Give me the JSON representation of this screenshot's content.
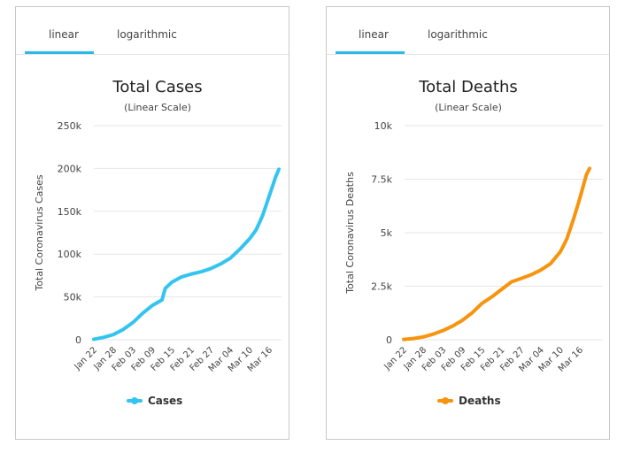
{
  "panels": [
    {
      "tabs": {
        "active": "linear",
        "inactive": "logarithmic"
      },
      "chart_data": {
        "type": "line",
        "title": "Total Cases",
        "subtitle": "(Linear Scale)",
        "ylabel": "Total Coronavirus Cases",
        "xlabel": "",
        "ylim": [
          0,
          250000
        ],
        "yticks": [
          0,
          50000,
          100000,
          150000,
          200000,
          250000
        ],
        "ytick_labels": [
          "0",
          "50k",
          "100k",
          "150k",
          "200k",
          "250k"
        ],
        "x_tick_labels": [
          "Jan 22",
          "Jan 28",
          "Feb 03",
          "Feb 09",
          "Feb 15",
          "Feb 21",
          "Feb 27",
          "Mar 04",
          "Mar 10",
          "Mar 16"
        ],
        "legend_position": "bottom",
        "grid": true,
        "series": [
          {
            "name": "Cases",
            "color": "#33c4ef",
            "x": [
              "Jan 22",
              "Jan 25",
              "Jan 28",
              "Jan 31",
              "Feb 03",
              "Feb 06",
              "Feb 09",
              "Feb 12",
              "Feb 13",
              "Feb 15",
              "Feb 18",
              "Feb 21",
              "Feb 24",
              "Feb 27",
              "Mar 01",
              "Mar 04",
              "Mar 07",
              "Mar 10",
              "Mar 12",
              "Mar 14",
              "Mar 16",
              "Mar 18",
              "Mar 19"
            ],
            "values": [
              580,
              2800,
              6000,
              11900,
              20000,
              30800,
              40000,
              46500,
              60000,
              67100,
              73300,
              76700,
              79300,
              83100,
              88400,
              95100,
              105800,
              118000,
              128300,
              145100,
              167500,
              190000,
              199000
            ]
          }
        ]
      }
    },
    {
      "tabs": {
        "active": "linear",
        "inactive": "logarithmic"
      },
      "chart_data": {
        "type": "line",
        "title": "Total Deaths",
        "subtitle": "(Linear Scale)",
        "ylabel": "Total Coronavirus Deaths",
        "xlabel": "",
        "ylim": [
          0,
          10000
        ],
        "yticks": [
          0,
          2500,
          5000,
          7500,
          10000
        ],
        "ytick_labels": [
          "0",
          "2.5k",
          "5k",
          "7.5k",
          "10k"
        ],
        "x_tick_labels": [
          "Jan 22",
          "Jan 28",
          "Feb 03",
          "Feb 09",
          "Feb 15",
          "Feb 21",
          "Feb 27",
          "Mar 04",
          "Mar 10",
          "Mar 16"
        ],
        "legend_position": "bottom",
        "grid": true,
        "series": [
          {
            "name": "Deaths",
            "color": "#f7940f",
            "x": [
              "Jan 22",
              "Jan 25",
              "Jan 28",
              "Jan 31",
              "Feb 03",
              "Feb 06",
              "Feb 09",
              "Feb 12",
              "Feb 15",
              "Feb 18",
              "Feb 21",
              "Feb 24",
              "Feb 27",
              "Mar 01",
              "Mar 04",
              "Mar 07",
              "Mar 10",
              "Mar 12",
              "Mar 14",
              "Mar 16",
              "Mar 18",
              "Mar 19"
            ],
            "values": [
              17,
              56,
              132,
              259,
              427,
              638,
              910,
              1260,
              1700,
              2000,
              2350,
              2700,
              2860,
              3030,
              3250,
              3550,
              4100,
              4700,
              5600,
              6600,
              7700,
              8000
            ]
          }
        ]
      }
    }
  ]
}
